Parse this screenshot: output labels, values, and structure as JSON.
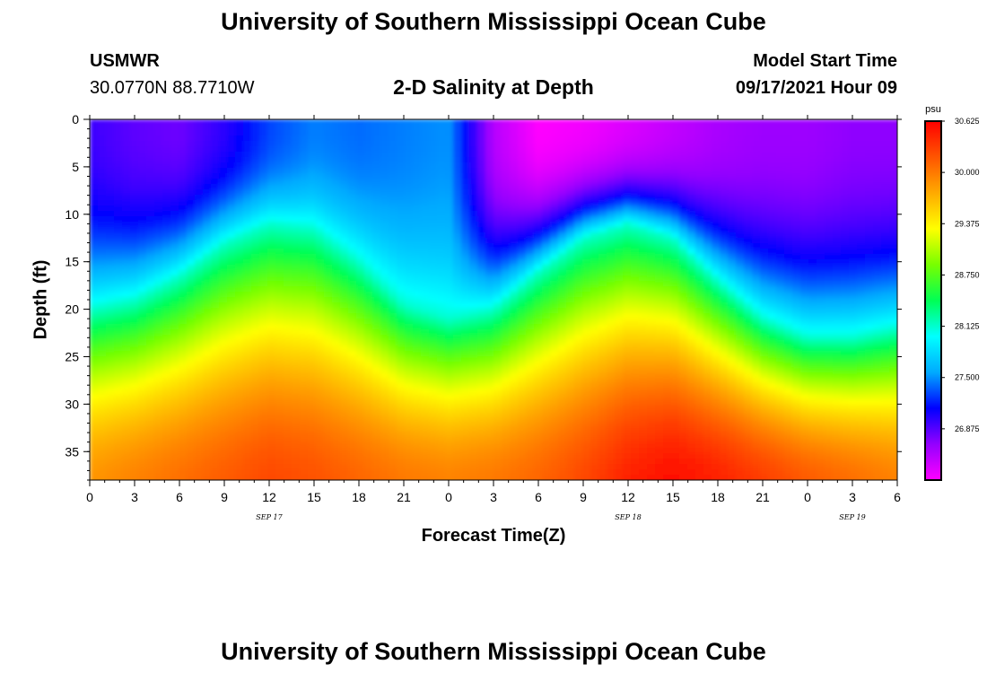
{
  "header": {
    "title": "University of Southern Mississippi Ocean Cube",
    "station_id": "USMWR",
    "location": "30.0770N  88.7710W",
    "plot_title": "2-D Salinity at Depth",
    "model_start_label": "Model Start Time",
    "model_start_value": "09/17/2021 Hour 09"
  },
  "footer": {
    "title": "University of Southern Mississippi Ocean Cube"
  },
  "colors": {
    "scale": [
      "#ff00ff",
      "#9400ff",
      "#0000ff",
      "#00aaff",
      "#00ffff",
      "#00ff55",
      "#77ff00",
      "#ffff00",
      "#ffaa00",
      "#ff5500",
      "#ff0000"
    ]
  },
  "chart_data": {
    "type": "heatmap",
    "title": "2-D Salinity at Depth",
    "xlabel": "Forecast Time(Z)",
    "ylabel": "Depth (ft)",
    "xlim": [
      0,
      54
    ],
    "ylim": [
      0,
      38
    ],
    "x_tick_values": [
      0,
      3,
      6,
      9,
      12,
      15,
      18,
      21,
      24,
      27,
      30,
      33,
      36,
      39,
      42,
      45,
      48,
      51,
      54
    ],
    "x_tick_labels": [
      "0",
      "3",
      "6",
      "9",
      "12",
      "15",
      "18",
      "21",
      "0",
      "3",
      "6",
      "9",
      "12",
      "15",
      "18",
      "21",
      "0",
      "3",
      "6"
    ],
    "day_labels": [
      {
        "x": 12,
        "label": "SEP 17"
      },
      {
        "x": 36,
        "label": "SEP 18"
      },
      {
        "x": 51,
        "label": "SEP 19"
      }
    ],
    "y_ticks": [
      0,
      5,
      10,
      15,
      20,
      25,
      30,
      35
    ],
    "colorbar": {
      "unit": "psu",
      "min": 26.25,
      "max": 30.625,
      "tick_values": [
        26.875,
        27.5,
        28.125,
        28.75,
        29.375,
        30.0,
        30.625
      ],
      "tick_labels": [
        "26.875",
        "27.500",
        "28.125",
        "28.750",
        "29.375",
        "30.000",
        "30.625"
      ]
    },
    "description_of_field": "Salinity (psu) by depth (ft) vs forecast hour from model start",
    "interface_depth": {
      "hours": [
        0,
        3,
        6,
        9,
        12,
        15,
        18,
        21,
        24,
        27,
        30,
        33,
        36,
        39,
        42,
        45,
        48,
        51,
        54
      ],
      "depth_ft": [
        20,
        19,
        16.5,
        13,
        11,
        11.5,
        15,
        19.5,
        21,
        20,
        16,
        12.5,
        11,
        12.5,
        17,
        21,
        23,
        23,
        22
      ]
    },
    "surface_salinity": {
      "hours": [
        0,
        3,
        6,
        9,
        12,
        15,
        18,
        21,
        24,
        27,
        30,
        33,
        36,
        39,
        42,
        45,
        48,
        51,
        54
      ],
      "psu": [
        26.95,
        26.85,
        26.8,
        27.0,
        27.3,
        27.45,
        27.4,
        27.45,
        27.5,
        26.55,
        26.25,
        26.3,
        26.4,
        26.5,
        26.6,
        26.65,
        26.65,
        26.7,
        26.7
      ]
    },
    "bottom_salinity": {
      "hours": [
        0,
        3,
        6,
        9,
        12,
        15,
        18,
        21,
        24,
        27,
        30,
        33,
        36,
        39,
        42,
        45,
        48,
        51,
        54
      ],
      "psu": [
        29.85,
        29.95,
        30.05,
        30.15,
        30.25,
        30.2,
        30.1,
        30.0,
        29.95,
        30.0,
        30.1,
        30.25,
        30.45,
        30.55,
        30.45,
        30.3,
        30.15,
        30.05,
        29.95
      ]
    }
  }
}
